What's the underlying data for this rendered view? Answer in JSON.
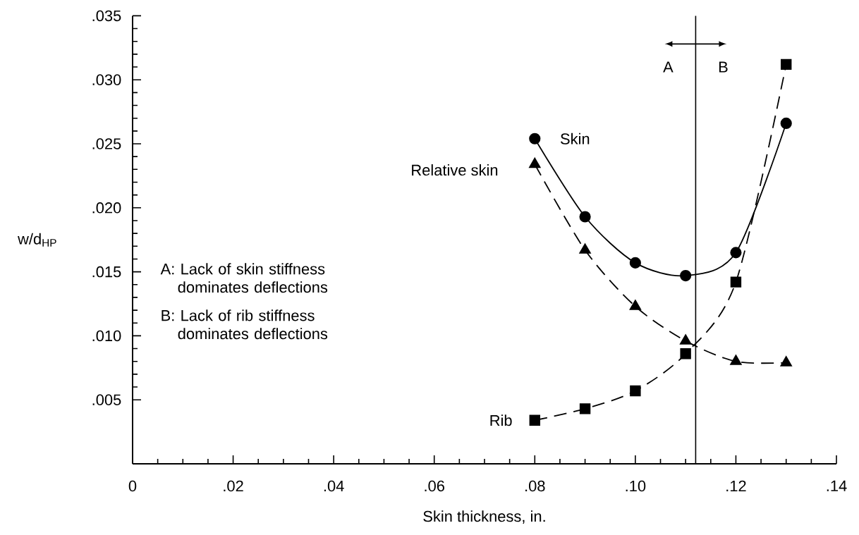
{
  "chart_data": {
    "type": "line",
    "xlabel": "Skin thickness, in.",
    "ylabel": "w/d$_{HP}$",
    "x": [
      0.08,
      0.09,
      0.1,
      0.11,
      0.12,
      0.13
    ],
    "series": [
      {
        "name": "Skin",
        "color": "#000000",
        "marker": "circle",
        "line_style": "solid",
        "values": [
          0.0254,
          0.0193,
          0.0157,
          0.0147,
          0.0165,
          0.0266
        ]
      },
      {
        "name": "Relative skin",
        "color": "#000000",
        "marker": "triangle",
        "line_style": "dashed",
        "values": [
          0.0234,
          0.0167,
          0.0123,
          0.0096,
          0.008,
          0.0079
        ]
      },
      {
        "name": "Rib",
        "color": "#000000",
        "marker": "square",
        "line_style": "dashed",
        "values": [
          0.0034,
          0.0043,
          0.0057,
          0.0086,
          0.0142,
          0.0312
        ]
      }
    ],
    "xlim": [
      0,
      0.14
    ],
    "ylim": [
      0,
      0.035
    ],
    "xticks": [
      0,
      {
        "value": 0.02,
        "label": ".02"
      },
      {
        "value": 0.04,
        "label": ".04"
      },
      {
        "value": 0.06,
        "label": ".06"
      },
      {
        "value": 0.08,
        "label": ".08"
      },
      {
        "value": 0.1,
        "label": ".10"
      },
      {
        "value": 0.12,
        "label": ".12"
      },
      {
        "value": 0.14,
        "label": ".14"
      }
    ],
    "yticks": [
      {
        "value": 0.005,
        "label": ".005"
      },
      {
        "value": 0.01,
        "label": ".010"
      },
      {
        "value": 0.015,
        "label": ".015"
      },
      {
        "value": 0.02,
        "label": ".020"
      },
      {
        "value": 0.025,
        "label": ".025"
      },
      {
        "value": 0.03,
        "label": ".030"
      },
      {
        "value": 0.035,
        "label": ".035"
      }
    ],
    "ref_lines": [
      {
        "axis": "x",
        "value": 0.112,
        "color": "#000000",
        "line_style": "solid"
      }
    ],
    "annotations": [
      "A: Lack of skin stiffness dominates deflections",
      "B: Lack of rib stiffness dominates deflections",
      "A",
      "B"
    ],
    "grid": false
  }
}
